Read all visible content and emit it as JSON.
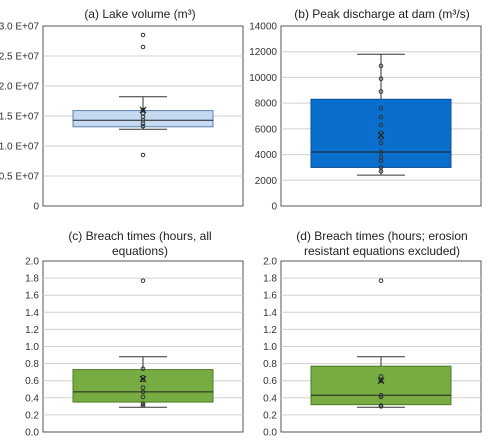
{
  "chart_data": [
    {
      "type": "box",
      "title": "(a) Lake volume (m³)",
      "title_lines": [
        "(a) Lake volume (m³)"
      ],
      "ylim": [
        0,
        30000000
      ],
      "ytick_values": [
        0,
        5000000,
        10000000,
        15000000,
        20000000,
        25000000,
        30000000
      ],
      "yticks": [
        "0",
        "0.5 E+07",
        "1.0 E+07",
        "1.5 E+07",
        "2.0 E+07",
        "2.5 E+07",
        "3.0 E+07"
      ],
      "grid": true,
      "box": {
        "q1": 13200000,
        "median": 14300000,
        "q3": 15900000,
        "whisker_low": 12800000,
        "whisker_high": 18200000,
        "mean": 16000000
      },
      "points": [
        8500000,
        13300000,
        13700000,
        14300000,
        14900000,
        15400000,
        16000000,
        26500000,
        28500000
      ],
      "colors": {
        "fill": "#c5d9f1",
        "edge": "#5a7fb0"
      }
    },
    {
      "type": "box",
      "title": "(b) Peak discharge at dam (m³/s)",
      "title_lines": [
        "(b) Peak discharge at dam (m³/s)"
      ],
      "ylim": [
        0,
        14000
      ],
      "ytick_values": [
        0,
        2000,
        4000,
        6000,
        8000,
        10000,
        12000,
        14000
      ],
      "yticks": [
        "0",
        "2000",
        "4000",
        "6000",
        "8000",
        "10000",
        "12000",
        "14000"
      ],
      "grid": true,
      "box": {
        "q1": 3000,
        "median": 4200,
        "q3": 8300,
        "whisker_low": 2400,
        "whisker_high": 11800,
        "mean": 5500
      },
      "points": [
        2700,
        3000,
        3500,
        3800,
        4200,
        4900,
        5300,
        5700,
        6300,
        6900,
        7600,
        8900,
        9900,
        10900
      ],
      "colors": {
        "fill": "#0a6fcc",
        "edge": "#0a4f94"
      }
    },
    {
      "type": "box",
      "title": "(c) Breach times (hours, all equations)",
      "title_lines": [
        "(c) Breach times (hours, all",
        "equations)"
      ],
      "ylim": [
        0,
        2.0
      ],
      "ytick_values": [
        0,
        0.2,
        0.4,
        0.6,
        0.8,
        1.0,
        1.2,
        1.4,
        1.6,
        1.8,
        2.0
      ],
      "yticks": [
        "0.0",
        "0.2",
        "0.4",
        "0.6",
        "0.8",
        "1.0",
        "1.2",
        "1.4",
        "1.6",
        "1.8",
        "2.0"
      ],
      "grid": true,
      "box": {
        "q1": 0.35,
        "median": 0.47,
        "q3": 0.73,
        "whisker_low": 0.29,
        "whisker_high": 0.88,
        "mean": 0.62
      },
      "points": [
        0.31,
        0.33,
        0.41,
        0.47,
        0.52,
        0.61,
        0.64,
        0.74,
        1.77
      ],
      "colors": {
        "fill": "#77ac42",
        "edge": "#4e7a25"
      }
    },
    {
      "type": "box",
      "title": "(d) Breach times (hours; erosion resistant equations excluded)",
      "title_lines": [
        "(d) Breach times (hours; erosion",
        "resistant equations excluded)"
      ],
      "ylim": [
        0,
        2.0
      ],
      "ytick_values": [
        0,
        0.2,
        0.4,
        0.6,
        0.8,
        1.0,
        1.2,
        1.4,
        1.6,
        1.8,
        2.0
      ],
      "yticks": [
        "0.0",
        "0.2",
        "0.4",
        "0.6",
        "0.8",
        "1.0",
        "1.2",
        "1.4",
        "1.6",
        "1.8",
        "2.0"
      ],
      "grid": true,
      "box": {
        "q1": 0.32,
        "median": 0.43,
        "q3": 0.77,
        "whisker_low": 0.29,
        "whisker_high": 0.88,
        "mean": 0.6
      },
      "points": [
        0.3,
        0.31,
        0.41,
        0.43,
        0.6,
        0.65,
        1.77
      ],
      "colors": {
        "fill": "#77ac42",
        "edge": "#4e7a25"
      }
    }
  ]
}
